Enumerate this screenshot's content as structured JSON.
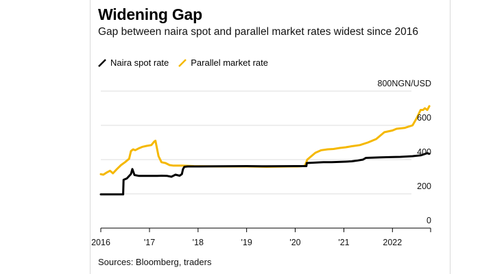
{
  "title": "Widening Gap",
  "subtitle": "Gap between naira spot and parallel market rates widest since 2016",
  "source": "Sources: Bloomberg, traders",
  "colors": {
    "spot": "#000000",
    "parallel": "#f5b800",
    "grid": "#dddddd"
  },
  "chart_data": {
    "type": "line",
    "title": "Widening Gap",
    "subtitle": "Gap between naira spot and parallel market rates widest since 2016",
    "ylabel": "NGN/USD",
    "unit_label": "800NGN/USD",
    "ylim": [
      0,
      800
    ],
    "yticks": [
      {
        "value": 0,
        "label": "0"
      },
      {
        "value": 200,
        "label": "200"
      },
      {
        "value": 400,
        "label": "400"
      },
      {
        "value": 600,
        "label": "600"
      },
      {
        "value": 800,
        "label": "800NGN/USD"
      }
    ],
    "xlim": [
      "2016-01-01",
      "2022-10-15"
    ],
    "xticks": [
      {
        "value": "2016-01-01",
        "label": "2016"
      },
      {
        "value": "2017-01-01",
        "label": "'17"
      },
      {
        "value": "2018-01-01",
        "label": "'18"
      },
      {
        "value": "2019-01-01",
        "label": "'19"
      },
      {
        "value": "2020-01-01",
        "label": "'20"
      },
      {
        "value": "2021-01-01",
        "label": "'21"
      },
      {
        "value": "2022-01-01",
        "label": "2022"
      }
    ],
    "grid": true,
    "legend": "top-left",
    "series": [
      {
        "name": "Naira spot rate",
        "color": "#000000",
        "points": [
          [
            "2016-01-01",
            197
          ],
          [
            "2016-06-17",
            197
          ],
          [
            "2016-06-20",
            282
          ],
          [
            "2016-07-15",
            290
          ],
          [
            "2016-08-15",
            316
          ],
          [
            "2016-08-25",
            345
          ],
          [
            "2016-09-10",
            310
          ],
          [
            "2016-10-15",
            305
          ],
          [
            "2016-12-01",
            305
          ],
          [
            "2017-01-15",
            305
          ],
          [
            "2017-03-01",
            305
          ],
          [
            "2017-04-01",
            306
          ],
          [
            "2017-05-15",
            305
          ],
          [
            "2017-06-15",
            300
          ],
          [
            "2017-07-15",
            312
          ],
          [
            "2017-08-15",
            306
          ],
          [
            "2017-09-01",
            315
          ],
          [
            "2017-09-10",
            345
          ],
          [
            "2017-09-20",
            358
          ],
          [
            "2017-10-15",
            360
          ],
          [
            "2018-01-01",
            360
          ],
          [
            "2018-06-01",
            361
          ],
          [
            "2019-01-01",
            362
          ],
          [
            "2019-06-01",
            361
          ],
          [
            "2019-12-31",
            362
          ],
          [
            "2020-03-25",
            362
          ],
          [
            "2020-03-28",
            380
          ],
          [
            "2020-05-15",
            382
          ],
          [
            "2020-08-01",
            385
          ],
          [
            "2020-10-01",
            385
          ],
          [
            "2021-01-15",
            388
          ],
          [
            "2021-03-01",
            390
          ],
          [
            "2021-04-15",
            395
          ],
          [
            "2021-05-25",
            400
          ],
          [
            "2021-06-15",
            410
          ],
          [
            "2021-10-01",
            413
          ],
          [
            "2022-01-01",
            415
          ],
          [
            "2022-03-01",
            416
          ],
          [
            "2022-06-01",
            420
          ],
          [
            "2022-08-01",
            425
          ],
          [
            "2022-09-01",
            433
          ],
          [
            "2022-09-20",
            438
          ],
          [
            "2022-10-05",
            434
          ]
        ]
      },
      {
        "name": "Parallel market rate",
        "color": "#f5b800",
        "points": [
          [
            "2016-01-01",
            315
          ],
          [
            "2016-01-20",
            312
          ],
          [
            "2016-02-15",
            325
          ],
          [
            "2016-03-10",
            335
          ],
          [
            "2016-04-01",
            320
          ],
          [
            "2016-05-01",
            345
          ],
          [
            "2016-06-01",
            368
          ],
          [
            "2016-07-01",
            385
          ],
          [
            "2016-08-01",
            405
          ],
          [
            "2016-08-15",
            450
          ],
          [
            "2016-09-01",
            460
          ],
          [
            "2016-09-15",
            455
          ],
          [
            "2016-10-10",
            465
          ],
          [
            "2016-11-10",
            475
          ],
          [
            "2016-12-10",
            480
          ],
          [
            "2017-01-15",
            485
          ],
          [
            "2017-02-05",
            505
          ],
          [
            "2017-02-15",
            510
          ],
          [
            "2017-02-25",
            470
          ],
          [
            "2017-03-10",
            420
          ],
          [
            "2017-04-01",
            385
          ],
          [
            "2017-05-01",
            380
          ],
          [
            "2017-06-01",
            368
          ],
          [
            "2017-07-01",
            365
          ],
          [
            "2017-09-01",
            365
          ],
          [
            "2017-12-01",
            362
          ],
          [
            "2018-06-01",
            360
          ],
          [
            "2019-01-01",
            360
          ],
          [
            "2019-06-01",
            358
          ],
          [
            "2019-12-01",
            360
          ],
          [
            "2020-01-15",
            360
          ],
          [
            "2020-02-15",
            361
          ],
          [
            "2020-03-15",
            365
          ],
          [
            "2020-04-01",
            400
          ],
          [
            "2020-05-01",
            420
          ],
          [
            "2020-06-01",
            440
          ],
          [
            "2020-07-15",
            455
          ],
          [
            "2020-09-01",
            460
          ],
          [
            "2020-10-15",
            462
          ],
          [
            "2020-12-01",
            468
          ],
          [
            "2021-01-15",
            472
          ],
          [
            "2021-03-01",
            478
          ],
          [
            "2021-05-01",
            485
          ],
          [
            "2021-07-01",
            500
          ],
          [
            "2021-09-01",
            520
          ],
          [
            "2021-11-01",
            560
          ],
          [
            "2022-01-01",
            570
          ],
          [
            "2022-02-01",
            580
          ],
          [
            "2022-04-01",
            585
          ],
          [
            "2022-06-01",
            600
          ],
          [
            "2022-07-01",
            640
          ],
          [
            "2022-08-01",
            690
          ],
          [
            "2022-08-20",
            690
          ],
          [
            "2022-09-01",
            700
          ],
          [
            "2022-09-20",
            690
          ],
          [
            "2022-10-05",
            712
          ]
        ]
      }
    ]
  }
}
